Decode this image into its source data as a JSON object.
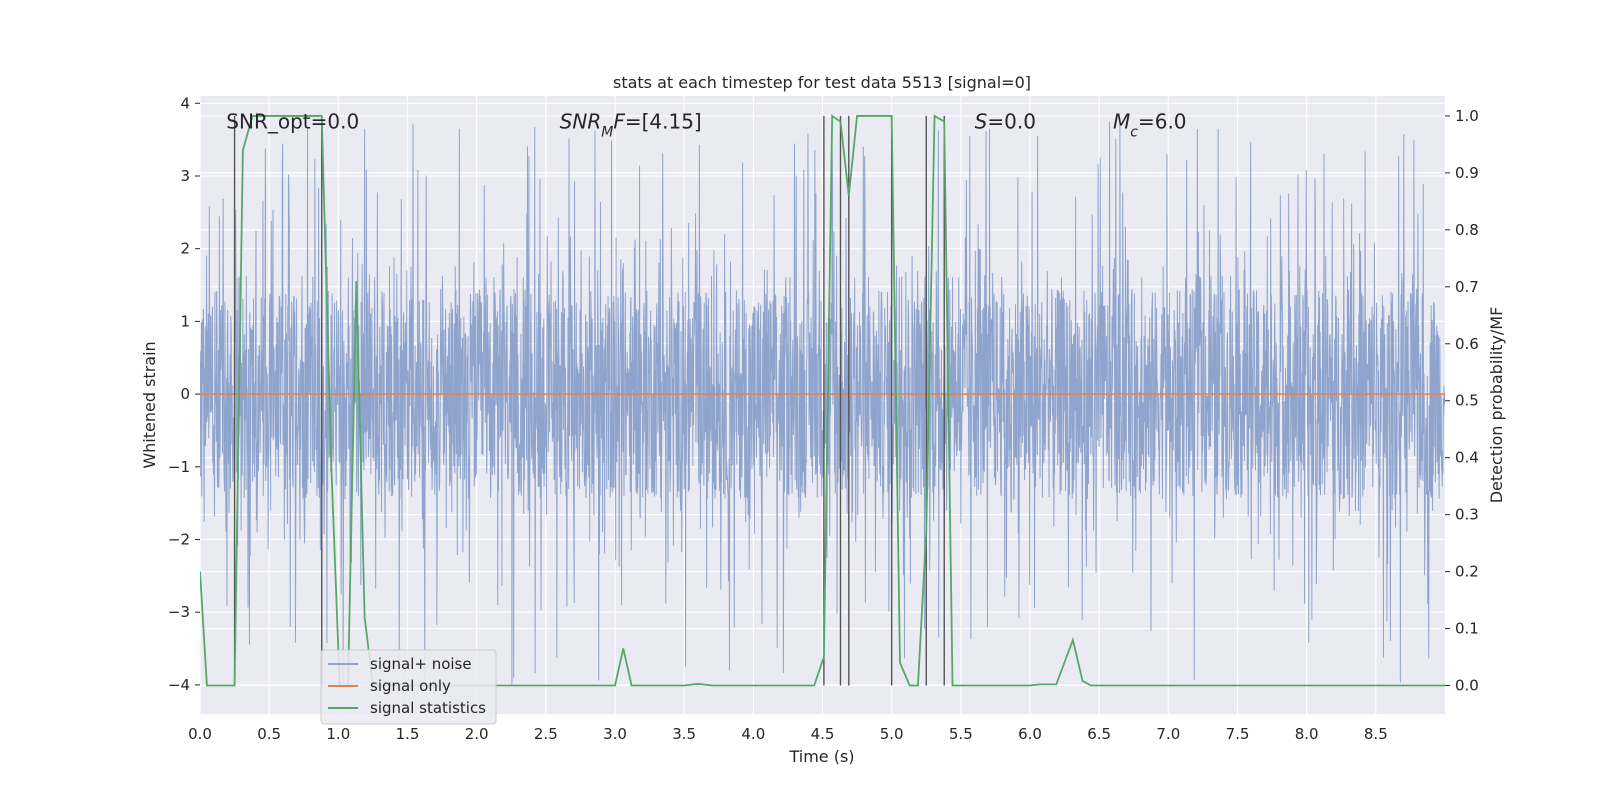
{
  "chart_data": {
    "type": "line",
    "title": "stats at each timestep for test data 5513 [signal=0]",
    "xlabel": "Time (s)",
    "ylabel": "Whitened strain",
    "y2label": "Detection probability/MF",
    "xlim": [
      0.0,
      9.0
    ],
    "ylim": [
      -4.4,
      4.1
    ],
    "y2lim": [
      -0.05,
      1.035
    ],
    "x_ticks": [
      0.0,
      0.5,
      1.0,
      1.5,
      2.0,
      2.5,
      3.0,
      3.5,
      4.0,
      4.5,
      5.0,
      5.5,
      6.0,
      6.5,
      7.0,
      7.5,
      8.0,
      8.5
    ],
    "x_tick_labels": [
      "0.0",
      "0.5",
      "1.0",
      "1.5",
      "2.0",
      "2.5",
      "3.0",
      "3.5",
      "4.0",
      "4.5",
      "5.0",
      "5.5",
      "6.0",
      "6.5",
      "7.0",
      "7.5",
      "8.0",
      "8.5"
    ],
    "y_ticks": [
      -4,
      -3,
      -2,
      -1,
      0,
      1,
      2,
      3,
      4
    ],
    "y_tick_labels": [
      "−4",
      "−3",
      "−2",
      "−1",
      "0",
      "1",
      "2",
      "3",
      "4"
    ],
    "y2_ticks": [
      0.0,
      0.1,
      0.2,
      0.3,
      0.4,
      0.5,
      0.6,
      0.7,
      0.8,
      0.9,
      1.0
    ],
    "y2_tick_labels": [
      "0.0",
      "0.1",
      "0.2",
      "0.3",
      "0.4",
      "0.5",
      "0.6",
      "0.7",
      "0.8",
      "0.9",
      "1.0"
    ],
    "grid": true,
    "legend_placement": "lower-left",
    "annotations": [
      {
        "parts": [
          {
            "t": "SNR_opt=0.0"
          }
        ],
        "x": 0.19,
        "y": 3.75
      },
      {
        "parts": [
          {
            "t": "SNR",
            "i": true
          },
          {
            "t": "M",
            "i": true,
            "sub": true
          },
          {
            "t": "F",
            "i": true
          },
          {
            "t": "=[4.15]"
          }
        ],
        "x": 2.6,
        "y": 3.75
      },
      {
        "parts": [
          {
            "t": "S",
            "i": true
          },
          {
            "t": "=0.0"
          }
        ],
        "x": 5.6,
        "y": 3.75
      },
      {
        "parts": [
          {
            "t": "M",
            "i": true
          },
          {
            "t": "c",
            "i": true,
            "sub": true
          },
          {
            "t": "=6.0"
          }
        ],
        "x": 6.6,
        "y": 3.75
      }
    ],
    "noise_envelope": {
      "x_range": [
        0.0,
        9.0
      ],
      "core_amplitude": 1.45,
      "spike_top_range": [
        1.6,
        3.75
      ],
      "spike_bottom_range": [
        -1.6,
        -4.05
      ]
    },
    "vertical_markers": [
      0.25,
      0.88,
      4.51,
      4.63,
      4.69,
      5.0,
      5.25,
      5.38
    ],
    "series": [
      {
        "name": "signal+ noise",
        "color": "#8fa4cc",
        "axis": "left",
        "kind": "noise"
      },
      {
        "name": "signal only",
        "color": "#dd8452",
        "axis": "left",
        "x": [
          0.0,
          9.0
        ],
        "values": [
          0.0,
          0.0
        ]
      },
      {
        "name": "signal statistics",
        "color": "#55a868",
        "axis": "right",
        "x": [
          0.0,
          0.05,
          0.25,
          0.31,
          0.38,
          0.88,
          0.95,
          1.01,
          1.07,
          1.13,
          1.19,
          1.25,
          1.31,
          2.9,
          3.0,
          3.06,
          3.12,
          3.5,
          3.6,
          3.7,
          4.44,
          4.51,
          4.57,
          4.63,
          4.69,
          4.75,
          5.0,
          5.06,
          5.13,
          5.19,
          5.25,
          5.31,
          5.38,
          5.44,
          5.5,
          6.0,
          6.07,
          6.19,
          6.31,
          6.38,
          6.44,
          9.0
        ],
        "values": [
          0.2,
          0.0,
          0.0,
          0.94,
          1.0,
          1.0,
          0.38,
          0.0,
          0.0,
          0.71,
          0.12,
          0.0,
          0.0,
          0.0,
          0.0,
          0.065,
          0.0,
          0.0,
          0.003,
          0.0,
          0.0,
          0.05,
          1.0,
          0.99,
          0.86,
          1.0,
          1.0,
          0.04,
          0.0,
          0.0,
          0.27,
          1.0,
          0.99,
          0.0,
          0.0,
          0.0,
          0.002,
          0.002,
          0.08,
          0.008,
          0.0,
          0.0
        ]
      }
    ]
  }
}
